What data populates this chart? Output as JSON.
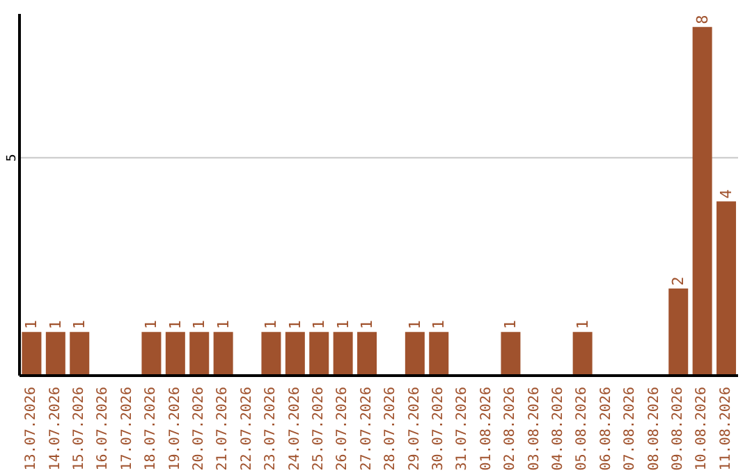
{
  "chart_data": {
    "type": "bar",
    "categories": [
      "13.07.2026",
      "14.07.2026",
      "15.07.2026",
      "16.07.2026",
      "17.07.2026",
      "18.07.2026",
      "19.07.2026",
      "20.07.2026",
      "21.07.2026",
      "22.07.2026",
      "23.07.2026",
      "24.07.2026",
      "25.07.2026",
      "26.07.2026",
      "27.07.2026",
      "28.07.2026",
      "29.07.2026",
      "30.07.2026",
      "31.07.2026",
      "01.08.2026",
      "02.08.2026",
      "03.08.2026",
      "04.08.2026",
      "05.08.2026",
      "06.08.2026",
      "07.08.2026",
      "08.08.2026",
      "09.08.2026",
      "10.08.2026",
      "11.08.2026"
    ],
    "values": [
      1,
      1,
      1,
      0,
      0,
      1,
      1,
      1,
      1,
      0,
      1,
      1,
      1,
      1,
      1,
      0,
      1,
      1,
      0,
      0,
      1,
      0,
      0,
      1,
      0,
      0,
      0,
      2,
      8,
      4
    ],
    "value_labels": [
      "1",
      "1",
      "1",
      null,
      null,
      "1",
      "1",
      "1",
      "1",
      null,
      "1",
      "1",
      "1",
      "1",
      "1",
      null,
      "1",
      "1",
      null,
      null,
      "1",
      null,
      null,
      "1",
      null,
      null,
      null,
      "2",
      "8",
      "4"
    ],
    "color": "#a0522d",
    "ylim": [
      0,
      8.3
    ],
    "yticks": [
      5
    ],
    "grid": "y"
  }
}
